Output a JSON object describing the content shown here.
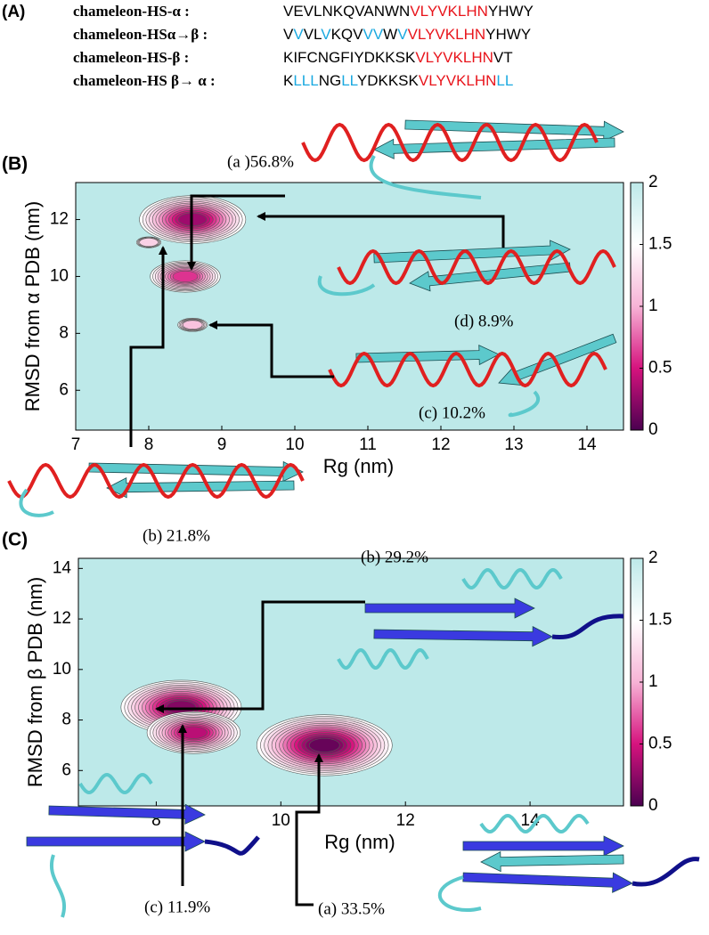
{
  "panel_labels": [
    "(A)",
    "(B)",
    "(C)"
  ],
  "sequences": [
    {
      "name": "chameleon-HS-α :",
      "segments": [
        {
          "text": "VEVLNKQVANWN",
          "color": "#000000"
        },
        {
          "text": "VLYVKLHN",
          "color": "#e8141b"
        },
        {
          "text": "YHWY",
          "color": "#000000"
        }
      ]
    },
    {
      "name": "chameleon-HSα→β :",
      "segments": [
        {
          "text": "V",
          "color": "#000000"
        },
        {
          "text": "V",
          "color": "#1aa9e0"
        },
        {
          "text": "VL",
          "color": "#000000"
        },
        {
          "text": "V",
          "color": "#1aa9e0"
        },
        {
          "text": "KQV",
          "color": "#000000"
        },
        {
          "text": "VV",
          "color": "#1aa9e0"
        },
        {
          "text": "W",
          "color": "#000000"
        },
        {
          "text": "V",
          "color": "#1aa9e0"
        },
        {
          "text": "VLYVKLHN",
          "color": "#e8141b"
        },
        {
          "text": "YHWY",
          "color": "#000000"
        }
      ]
    },
    {
      "name": "chameleon-HS-β :",
      "segments": [
        {
          "text": "KIFCNGFIYDKKSK",
          "color": "#000000"
        },
        {
          "text": "VLYVKLHN",
          "color": "#e8141b"
        },
        {
          "text": "VT",
          "color": "#000000"
        }
      ]
    },
    {
      "name": "chameleon-HS β→ α :",
      "segments": [
        {
          "text": "K",
          "color": "#000000"
        },
        {
          "text": "LLL",
          "color": "#1aa9e0"
        },
        {
          "text": "NG",
          "color": "#000000"
        },
        {
          "text": "LL",
          "color": "#1aa9e0"
        },
        {
          "text": "YDKKSK",
          "color": "#000000"
        },
        {
          "text": "VLYVKLHN",
          "color": "#e8141b"
        },
        {
          "text": "LL",
          "color": "#1aa9e0"
        }
      ]
    }
  ],
  "chart_data": [
    {
      "type": "contour",
      "xlabel": "Rg (nm)",
      "ylabel": "RMSD from α PDB (nm)",
      "xlim": [
        7,
        14.5
      ],
      "ylim": [
        4.6,
        13.3
      ],
      "xticks": [
        7,
        8,
        9,
        10,
        11,
        12,
        13,
        14
      ],
      "yticks": [
        6,
        8,
        10,
        12
      ],
      "x": [
        8.6,
        8.0,
        8.5,
        8.6
      ],
      "y": [
        12.0,
        11.2,
        10.0,
        8.3
      ],
      "values": [
        0.3,
        1.2,
        0.6,
        1.1
      ],
      "background": "#bde9e9",
      "colormap": [
        "#4b0050",
        "#d6137e",
        "#f7b3d6",
        "#ffffff",
        "#bde9e9"
      ],
      "colorbar": {
        "lim": [
          0,
          2
        ],
        "ticks": [
          0,
          0.5,
          1,
          1.5,
          2
        ]
      },
      "annotations": [
        "(a )56.8%",
        "(d) 8.9%",
        "(c) 10.2%",
        "(b) 21.8%"
      ]
    },
    {
      "type": "contour",
      "xlabel": "Rg (nm)",
      "ylabel": "RMSD from β PDB (nm)",
      "xlim": [
        6.75,
        15.5
      ],
      "ylim": [
        4.6,
        14.4
      ],
      "xticks": [
        8,
        10,
        12,
        14
      ],
      "yticks": [
        6,
        8,
        10,
        12,
        14
      ],
      "x": [
        8.4,
        8.6,
        10.7
      ],
      "y": [
        8.5,
        7.5,
        7.0
      ],
      "values": [
        0.2,
        0.4,
        0.1
      ],
      "background": "#bde9e9",
      "colormap": [
        "#4b0050",
        "#d6137e",
        "#f7b3d6",
        "#ffffff",
        "#bde9e9"
      ],
      "colorbar": {
        "lim": [
          0,
          2
        ],
        "ticks": [
          0,
          0.5,
          1,
          1.5,
          2
        ]
      },
      "annotations": [
        "(b) 29.2%",
        "(c) 11.9%",
        "(a) 33.5%"
      ]
    }
  ]
}
